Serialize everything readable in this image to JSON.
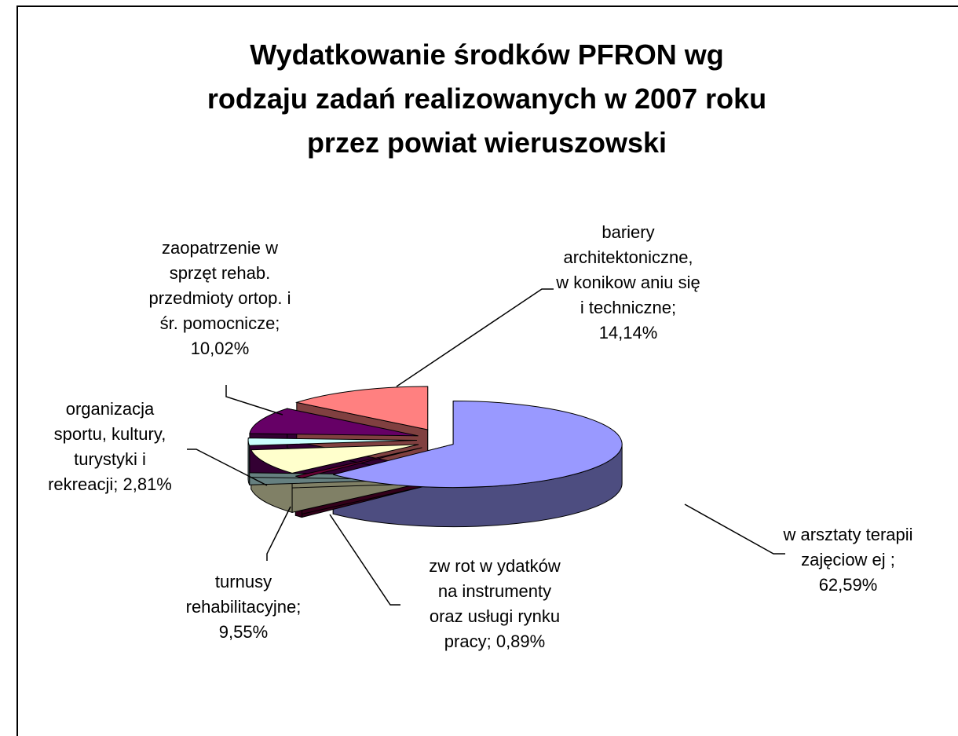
{
  "chart_data": {
    "type": "pie3d",
    "title": "Wydatkowanie środków PFRON wg\nrodzaju zadań realizowanych w 2007 roku\nprzez powiat wieruszowski",
    "categories": [
      "w arsztaty terapii\nzajęciow ej ;",
      "zw rot w ydatków\nna instrumenty\noraz usługi rynku\npracy;",
      "turnusy\nrehabilitacyjne;",
      "organizacja\nsportu, kultury,\nturystyki i\nrekreacji;",
      "zaopatrzenie w\nsprzęt rehab.\nprzedmioty ortop. i\nśr. pomocnicze;",
      "bariery\narchitektoniczne,\nw  konikow aniu się\ni techniczne;"
    ],
    "values": [
      62.59,
      0.89,
      9.55,
      2.81,
      10.02,
      14.14
    ],
    "value_labels": [
      "62,59%",
      "0,89%",
      "9,55%",
      "2,81%",
      "10,02%",
      "14,14%"
    ],
    "colors": [
      "#9999ff",
      "#660033",
      "#ffffcc",
      "#ccffff",
      "#660066",
      "#ff8080"
    ]
  }
}
